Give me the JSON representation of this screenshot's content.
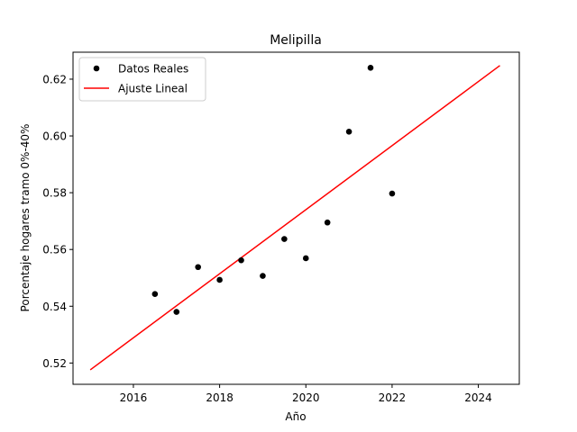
{
  "chart_data": {
    "type": "scatter",
    "title": "Melipilla",
    "xlabel": "Año",
    "ylabel": "Porcentaje hogares tramo 0%-40%",
    "xlim": [
      2014.6,
      2024.95
    ],
    "ylim": [
      0.5125,
      0.6295
    ],
    "xticks": [
      2016,
      2018,
      2020,
      2022,
      2024
    ],
    "yticks": [
      0.52,
      0.54,
      0.56,
      0.58,
      0.6,
      0.62
    ],
    "grid": false,
    "legend_position": "top-left",
    "series": [
      {
        "name": "Datos Reales",
        "kind": "points",
        "color": "#000000",
        "x": [
          2016.5,
          2017.0,
          2017.5,
          2018.0,
          2018.5,
          2019.0,
          2019.5,
          2020.0,
          2020.5,
          2021.0,
          2021.5,
          2022.0
        ],
        "y": [
          0.5443,
          0.538,
          0.5538,
          0.5493,
          0.5562,
          0.5507,
          0.5637,
          0.5569,
          0.5695,
          0.6015,
          0.624,
          0.5797
        ]
      },
      {
        "name": "Ajuste Lineal",
        "kind": "line",
        "color": "#ff0000",
        "x": [
          2015.0,
          2024.5
        ],
        "y": [
          0.5176,
          0.6248
        ]
      }
    ]
  }
}
